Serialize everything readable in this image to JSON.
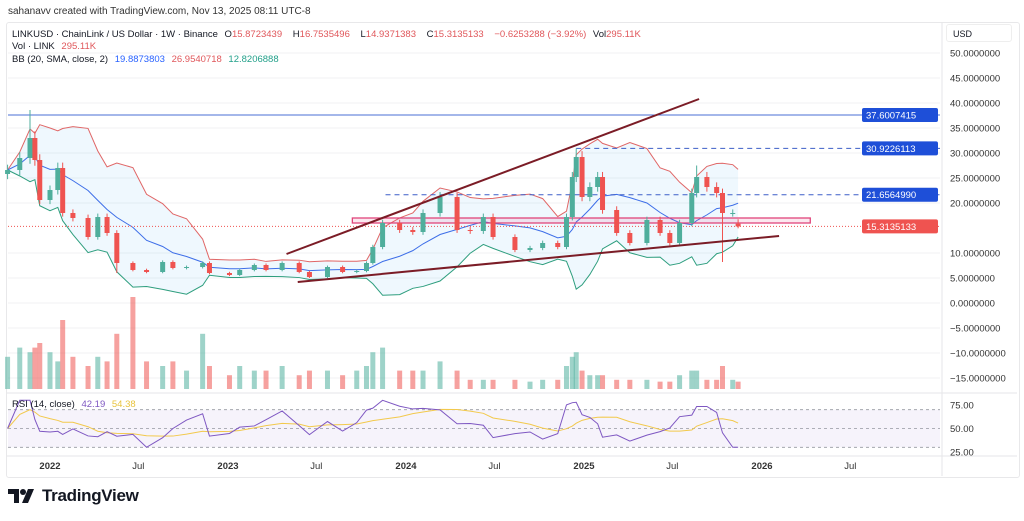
{
  "credit": "sahanavv created with TradingView.com, Nov 13, 2025 08:11 UTC-8",
  "legend": {
    "symbol": "LINKUSD · ChainLink / US Dollar · 1W · Binance",
    "o_label": "O",
    "o": "15.8723439",
    "h_label": "H",
    "h": "16.7535496",
    "l_label": "L",
    "l": "14.9371383",
    "c_label": "C",
    "c": "15.3135133",
    "change": "−0.6253288 (−3.92%)",
    "vol_label": "Vol",
    "vol": "295.11K",
    "vol_row_label": "Vol · LINK",
    "vol_row_value": "295.11K",
    "bb_label": "BB (20, SMA, close, 2)",
    "bb_basis": "19.8873803",
    "bb_upper": "26.9540718",
    "bb_lower": "12.8206888",
    "rsi_label": "RSI (14, close)",
    "rsi_value": "42.19",
    "rsi_ma": "54.38"
  },
  "axis": {
    "currency": "USD",
    "price_ticks": [
      "50.0000000",
      "45.0000000",
      "40.0000000",
      "35.0000000",
      "30.0000000",
      "25.0000000",
      "20.0000000",
      "10.0000000",
      "5.0000000",
      "0.0000000",
      "−5.0000000",
      "−10.0000000",
      "−15.0000000"
    ],
    "price_tick_values": [
      50,
      45,
      40,
      35,
      30,
      25,
      20,
      10,
      5,
      0,
      -5,
      -10,
      -15
    ],
    "rsi_ticks": [
      "75.00",
      "50.00",
      "25.00"
    ],
    "rsi_tick_values": [
      75,
      50,
      25
    ],
    "time_ticks": [
      {
        "label": "2022",
        "date": "2022-01-01",
        "bold": true
      },
      {
        "label": "Jul",
        "date": "2022-07-01",
        "bold": false
      },
      {
        "label": "2023",
        "date": "2023-01-01",
        "bold": true
      },
      {
        "label": "Jul",
        "date": "2023-07-01",
        "bold": false
      },
      {
        "label": "2024",
        "date": "2024-01-01",
        "bold": true
      },
      {
        "label": "Jul",
        "date": "2024-07-01",
        "bold": false
      },
      {
        "label": "2025",
        "date": "2025-01-01",
        "bold": true
      },
      {
        "label": "Jul",
        "date": "2025-07-01",
        "bold": false
      },
      {
        "label": "2026",
        "date": "2026-01-01",
        "bold": true
      },
      {
        "label": "Jul",
        "date": "2026-07-01",
        "bold": false
      }
    ],
    "badges": [
      {
        "label": "37.6007415",
        "price": 37.6007415,
        "color": "#1e4fd8"
      },
      {
        "label": "30.9226113",
        "price": 30.9226113,
        "color": "#1e4fd8"
      },
      {
        "label": "21.6564990",
        "price": 21.656499,
        "color": "#1e4fd8"
      },
      {
        "label": "15.3135133",
        "price": 15.3135133,
        "color": "#ef5350"
      }
    ]
  },
  "colors": {
    "up": "#4fae9c",
    "down": "#ef5350",
    "bb_upper": "#e06666",
    "bb_basis": "#3d6ee8",
    "bb_lower": "#2e9e7e",
    "rsi": "#7e57c2",
    "rsi_ma": "#f2c94c",
    "trend": "#7b1c26",
    "zone": "#e0457b"
  },
  "logo": "TradingView",
  "chart_data": {
    "type": "candlestick",
    "title": "LINKUSD · ChainLink / US Dollar · 1W · Binance",
    "ylim": [
      -17,
      52
    ],
    "grid": true,
    "points": [
      {
        "date": "2021-10-06",
        "close": 26.6,
        "vol": 0.35
      },
      {
        "date": "2021-10-31",
        "close": 29,
        "vol": 0.45
      },
      {
        "date": "2021-11-21",
        "close": 33,
        "high": 38.6,
        "vol": 0.4
      },
      {
        "date": "2021-12-01",
        "close": 28.6,
        "vol": 0.45
      },
      {
        "date": "2021-12-11",
        "close": 20.6,
        "vol": 0.5
      },
      {
        "date": "2022-01-01",
        "close": 22.6,
        "vol": 0.4
      },
      {
        "date": "2022-01-17",
        "close": 27,
        "vol": 0.3
      },
      {
        "date": "2022-01-27",
        "close": 18,
        "vol": 0.75
      },
      {
        "date": "2022-02-17",
        "close": 17,
        "vol": 0.35
      },
      {
        "date": "2022-03-20",
        "close": 13.2,
        "vol": 0.25
      },
      {
        "date": "2022-04-09",
        "close": 17.2,
        "vol": 0.35
      },
      {
        "date": "2022-04-28",
        "close": 14,
        "vol": 0.3
      },
      {
        "date": "2022-05-18",
        "close": 8,
        "low": 6.0,
        "vol": 0.6
      },
      {
        "date": "2022-06-20",
        "close": 6.6,
        "vol": 1.0
      },
      {
        "date": "2022-07-18",
        "close": 6.2,
        "vol": 0.3
      },
      {
        "date": "2022-08-20",
        "close": 8.2,
        "vol": 0.25
      },
      {
        "date": "2022-09-10",
        "close": 7,
        "vol": 0.3
      },
      {
        "date": "2022-10-08",
        "close": 7.2,
        "vol": 0.2
      },
      {
        "date": "2022-11-10",
        "close": 8,
        "vol": 0.6
      },
      {
        "date": "2022-11-24",
        "close": 6,
        "vol": 0.25
      },
      {
        "date": "2023-01-04",
        "close": 5.6,
        "vol": 0.15
      },
      {
        "date": "2023-01-25",
        "close": 6.6,
        "vol": 0.25
      },
      {
        "date": "2023-02-24",
        "close": 7.6,
        "vol": 0.2
      },
      {
        "date": "2023-03-20",
        "close": 6.6,
        "vol": 0.2
      },
      {
        "date": "2023-04-22",
        "close": 8,
        "vol": 0.25
      },
      {
        "date": "2023-05-27",
        "close": 6.2,
        "vol": 0.15
      },
      {
        "date": "2023-06-17",
        "close": 5.2,
        "vol": 0.2
      },
      {
        "date": "2023-07-24",
        "close": 7.2,
        "vol": 0.2
      },
      {
        "date": "2023-08-24",
        "close": 6.2,
        "vol": 0.15
      },
      {
        "date": "2023-09-22",
        "close": 6.4,
        "vol": 0.2
      },
      {
        "date": "2023-10-12",
        "close": 8,
        "vol": 0.25
      },
      {
        "date": "2023-10-25",
        "close": 11.2,
        "vol": 0.4
      },
      {
        "date": "2023-11-14",
        "close": 16,
        "vol": 0.45
      },
      {
        "date": "2023-12-19",
        "close": 14.6,
        "vol": 0.2
      },
      {
        "date": "2024-01-15",
        "close": 14.2,
        "vol": 0.2
      },
      {
        "date": "2024-02-05",
        "close": 18,
        "vol": 0.2
      },
      {
        "date": "2024-03-11",
        "close": 21.2,
        "high": 22.2,
        "vol": 0.3
      },
      {
        "date": "2024-04-15",
        "close": 14.6,
        "vol": 0.2
      },
      {
        "date": "2024-05-12",
        "close": 14.4,
        "vol": 0.1
      },
      {
        "date": "2024-06-08",
        "close": 17.2,
        "vol": 0.1
      },
      {
        "date": "2024-06-28",
        "close": 13.2,
        "vol": 0.1
      },
      {
        "date": "2024-08-12",
        "close": 10.6,
        "vol": 0.1
      },
      {
        "date": "2024-09-12",
        "close": 11,
        "vol": 0.08
      },
      {
        "date": "2024-10-08",
        "close": 12,
        "vol": 0.1
      },
      {
        "date": "2024-11-08",
        "close": 11.2,
        "vol": 0.1
      },
      {
        "date": "2024-11-26",
        "close": 17.2,
        "vol": 0.25
      },
      {
        "date": "2024-12-08",
        "close": 25.2,
        "vol": 0.35
      },
      {
        "date": "2024-12-16",
        "close": 29.2,
        "high": 30.92,
        "vol": 0.4
      },
      {
        "date": "2024-12-28",
        "close": 21.2,
        "vol": 0.2
      },
      {
        "date": "2025-01-13",
        "close": 23.2,
        "vol": 0.15
      },
      {
        "date": "2025-01-29",
        "close": 25.2,
        "vol": 0.15
      },
      {
        "date": "2025-02-08",
        "close": 18.6,
        "vol": 0.15
      },
      {
        "date": "2025-03-09",
        "close": 14,
        "vol": 0.1
      },
      {
        "date": "2025-04-05",
        "close": 12,
        "vol": 0.1
      },
      {
        "date": "2025-05-10",
        "close": 16.6,
        "vol": 0.1
      },
      {
        "date": "2025-06-06",
        "close": 14,
        "vol": 0.08
      },
      {
        "date": "2025-06-26",
        "close": 12,
        "vol": 0.08
      },
      {
        "date": "2025-07-16",
        "close": 16,
        "vol": 0.15
      },
      {
        "date": "2025-08-10",
        "close": 22,
        "vol": 0.2
      },
      {
        "date": "2025-08-20",
        "close": 25.2,
        "high": 27.5,
        "vol": 0.2
      },
      {
        "date": "2025-09-10",
        "close": 23.2,
        "vol": 0.1
      },
      {
        "date": "2025-09-30",
        "close": 22,
        "vol": 0.1
      },
      {
        "date": "2025-10-12",
        "close": 18,
        "low": 8.2,
        "vol": 0.25
      },
      {
        "date": "2025-11-02",
        "close": 18,
        "vol": 0.1
      },
      {
        "date": "2025-11-13",
        "open": 15.8723439,
        "high": 16.7535496,
        "low": 14.9371383,
        "close": 15.3135133,
        "vol": 0.08
      }
    ],
    "drawings": {
      "horizontal_lines": [
        {
          "price": 37.6007415,
          "style": "solid",
          "from": "2021-10-01"
        },
        {
          "price": 30.9226113,
          "style": "dashed",
          "from": "2024-12-16"
        },
        {
          "price": 21.656499,
          "style": "dashed",
          "from": "2023-11-20"
        },
        {
          "price": 15.3135133,
          "style": "dotted",
          "from": "2021-10-01"
        }
      ],
      "trend_lines": [
        {
          "from": {
            "date": "2023-05-01",
            "price": 9.8
          },
          "to": {
            "date": "2025-08-25",
            "price": 40.8
          }
        },
        {
          "from": {
            "date": "2023-05-24",
            "price": 4.2
          },
          "to": {
            "date": "2026-02-05",
            "price": 13.4
          }
        }
      ],
      "zone": {
        "from": "2023-09-13",
        "to": "2026-04-10",
        "top": 17.0,
        "bottom": 16.0
      }
    }
  }
}
